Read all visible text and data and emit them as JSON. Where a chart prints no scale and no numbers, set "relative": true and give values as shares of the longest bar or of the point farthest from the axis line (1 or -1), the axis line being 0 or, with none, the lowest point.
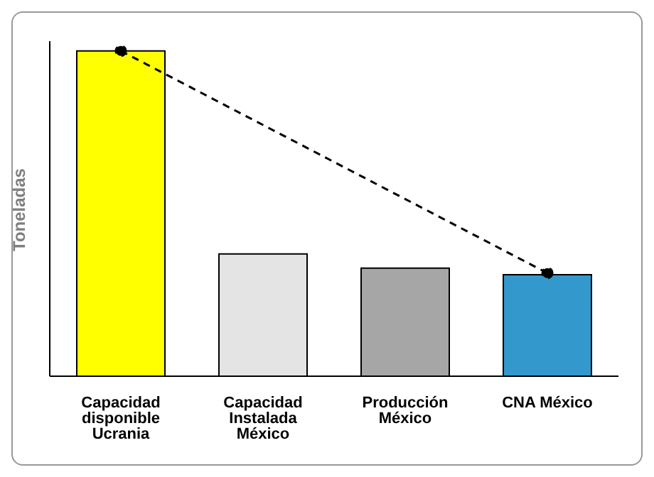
{
  "chart_data": {
    "type": "bar",
    "relative": true,
    "ylabel": "Toneladas",
    "categories": [
      "Capacidad disponible Ucrania",
      "Capacidad Instalada México",
      "Producción México",
      "CNA México"
    ],
    "series": [
      {
        "colors": [
          "#ffff00",
          "#e4e4e4",
          "#a6a6a6",
          "#3399cc"
        ],
        "values": [
          1,
          0.376,
          0.332,
          0.312
        ]
      },
      {
        "type": "line",
        "color": "#000000",
        "values": [
          1,
          null,
          null,
          0.317
        ],
        "line_style": "dashed",
        "marker": "circle"
      }
    ]
  }
}
